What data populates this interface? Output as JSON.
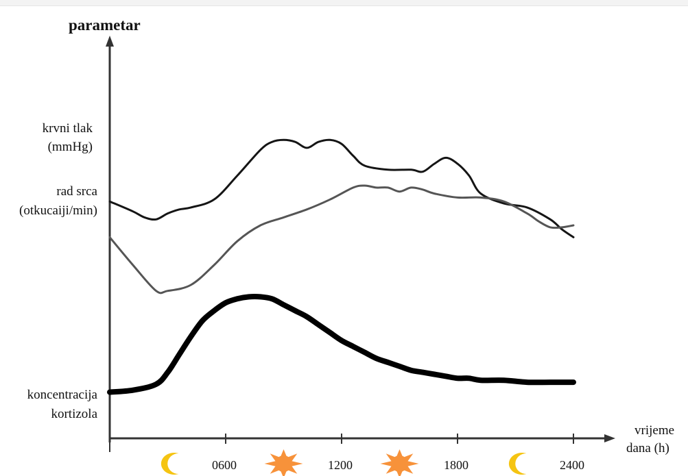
{
  "chart_data": {
    "type": "line",
    "ylabel": "parametar",
    "xlabel_line1": "vrijeme",
    "xlabel_line2": "dana (h)",
    "x_unit": "h",
    "xlim": [
      0,
      2400
    ],
    "x_ticks": [
      {
        "value": 600,
        "label": "0600"
      },
      {
        "value": 1200,
        "label": "1200"
      },
      {
        "value": 1800,
        "label": "1800"
      },
      {
        "value": 2400,
        "label": "2400"
      }
    ],
    "y_scale": "qualitative (relative level, 0–100)",
    "series": [
      {
        "name": "krvni tlak (mmHg)",
        "label_line1": "krvni tlak",
        "label_line2": "(mmHg)",
        "color": "#151515",
        "x": [
          0,
          120,
          180,
          240,
          300,
          360,
          420,
          540,
          660,
          780,
          840,
          900,
          960,
          1020,
          1080,
          1140,
          1200,
          1260,
          1320,
          1440,
          1560,
          1620,
          1680,
          1740,
          1800,
          1860,
          1920,
          2040,
          2160,
          2280,
          2340,
          2400
        ],
        "y": [
          42,
          37,
          34,
          33,
          36,
          38,
          39,
          43,
          55,
          68,
          72,
          73,
          72,
          69,
          72,
          73,
          71,
          65,
          60,
          58,
          58,
          57,
          61,
          64,
          61,
          55,
          46,
          41,
          39,
          33,
          28,
          24
        ]
      },
      {
        "name": "rad srca (otkucaiji/min)",
        "label_line1": "rad srca",
        "label_line2": "(otkucaiji/min)",
        "color": "#555555",
        "x": [
          0,
          120,
          240,
          300,
          420,
          540,
          660,
          780,
          900,
          1020,
          1140,
          1260,
          1320,
          1380,
          1440,
          1500,
          1560,
          1620,
          1680,
          1800,
          1920,
          2040,
          2160,
          2220,
          2280,
          2340,
          2400
        ],
        "y": [
          24,
          10,
          -3,
          -3,
          0,
          10,
          22,
          30,
          34,
          38,
          43,
          49,
          50,
          49,
          49,
          47,
          49,
          48,
          46,
          44,
          44,
          42,
          36,
          32,
          29,
          29,
          30
        ]
      },
      {
        "name": "koncentracija kortizola",
        "label_line1": "koncentracija",
        "label_line2": "kortizola",
        "color": "#000000",
        "x": [
          0,
          120,
          240,
          300,
          360,
          420,
          480,
          540,
          600,
          660,
          720,
          780,
          840,
          900,
          960,
          1020,
          1080,
          1140,
          1200,
          1260,
          1320,
          1380,
          1440,
          1500,
          1560,
          1620,
          1680,
          1740,
          1800,
          1860,
          1920,
          2040,
          2160,
          2280,
          2400
        ],
        "y": [
          -54,
          -53,
          -50,
          -44,
          -35,
          -26,
          -18,
          -13,
          -9,
          -7,
          -6,
          -6,
          -7,
          -10,
          -13,
          -16,
          -20,
          -24,
          -28,
          -31,
          -34,
          -37,
          -39,
          -41,
          -43,
          -44,
          -45,
          -46,
          -47,
          -47,
          -48,
          -48,
          -49,
          -49,
          -49
        ]
      }
    ],
    "time_symbols": [
      {
        "icon": "moon-icon",
        "x": 300
      },
      {
        "icon": "sun-icon",
        "x": 900
      },
      {
        "icon": "sun-icon",
        "x": 1500
      },
      {
        "icon": "moon-icon",
        "x": 2100
      }
    ],
    "colors": {
      "sun": "#f7923a",
      "moon": "#f5c412",
      "axis": "#333333"
    }
  }
}
